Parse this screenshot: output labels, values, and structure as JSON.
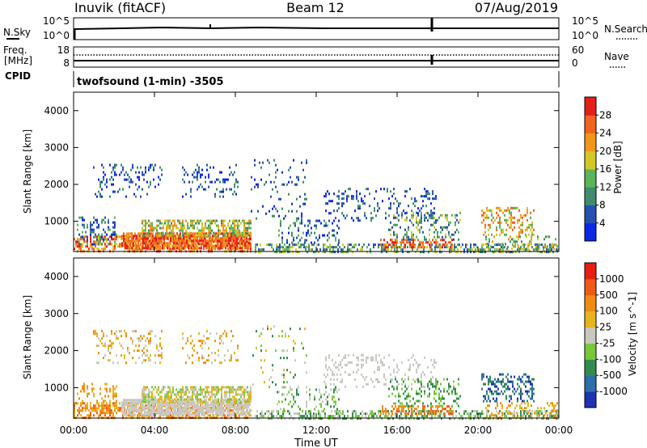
{
  "header": {
    "site": "Inuvik (fitACF)",
    "beam": "Beam 12",
    "date": "07/Aug/2019"
  },
  "strip1": {
    "left_label": "N.Sky",
    "left_ticks": [
      "10^5",
      "10^0"
    ],
    "right_ticks": [
      "10^5",
      "10^0"
    ],
    "right_label": "N.Search"
  },
  "strip2": {
    "left_label_1": "Freq.",
    "left_label_2": "[MHz]",
    "left_ticks": [
      "18",
      "8"
    ],
    "right_ticks": [
      "60",
      "0"
    ],
    "right_label": "Nave",
    "cpid_label": "CPID"
  },
  "cpid_text": "twofsound (1-min) -3505",
  "chart_data": [
    {
      "type": "heatmap",
      "name": "power",
      "ylabel": "Slant Range [km]",
      "yticks": [
        1000,
        2000,
        3000,
        4000
      ],
      "ylim": [
        180,
        4500
      ],
      "colorbar_label": "Power [dB]",
      "colorbar_ticks": [
        4,
        8,
        12,
        16,
        20,
        24,
        28
      ],
      "colorbar_colors": [
        "#0a28e6",
        "#2850b4",
        "#3f8c6e",
        "#5ab45a",
        "#d2c828",
        "#f09619",
        "#f0641e",
        "#e61e19"
      ]
    },
    {
      "type": "heatmap",
      "name": "velocity",
      "ylabel": "Slant Range [km]",
      "yticks": [
        1000,
        2000,
        3000,
        4000
      ],
      "ylim": [
        180,
        4500
      ],
      "colorbar_label": "Velocity [m s^-1]",
      "colorbar_ticks": [
        1000,
        500,
        100,
        25,
        -25,
        -100,
        -500,
        -1000
      ],
      "colorbar_colors": [
        "#1e32b4",
        "#2d6eaa",
        "#328c50",
        "#78c83c",
        "#c8c8c0",
        "#e6b41e",
        "#f08c14",
        "#f05a14",
        "#e61e14"
      ]
    }
  ],
  "time_axis": {
    "label": "Time UT",
    "ticks": [
      "00:00",
      "04:00",
      "08:00",
      "12:00",
      "16:00",
      "20:00",
      "00:00"
    ]
  }
}
